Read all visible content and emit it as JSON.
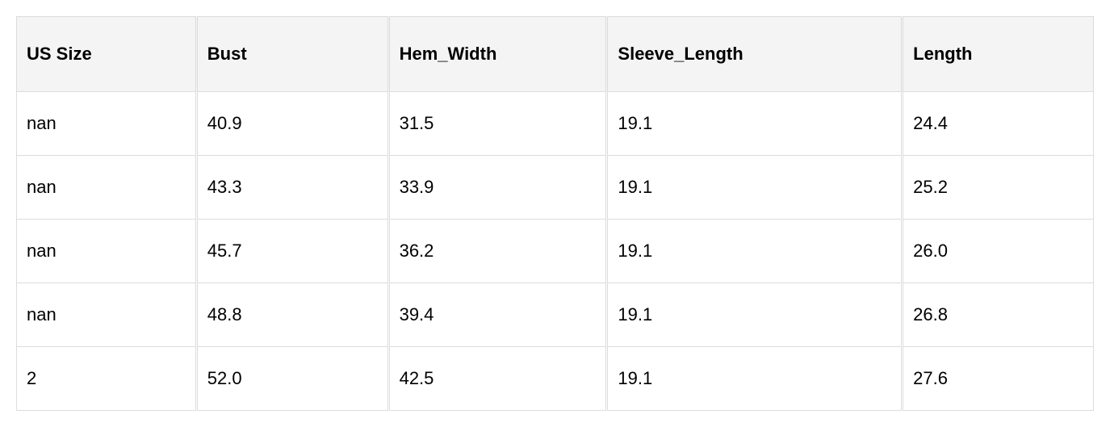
{
  "table": {
    "columns": [
      "US Size",
      "Bust",
      "Hem_Width",
      "Sleeve_Length",
      "Length"
    ],
    "rows": [
      [
        "nan",
        "40.9",
        "31.5",
        "19.1",
        "24.4"
      ],
      [
        "nan",
        "43.3",
        "33.9",
        "19.1",
        "25.2"
      ],
      [
        "nan",
        "45.7",
        "36.2",
        "19.1",
        "26.0"
      ],
      [
        "nan",
        "48.8",
        "39.4",
        "19.1",
        "26.8"
      ],
      [
        "2",
        "52.0",
        "42.5",
        "19.1",
        "27.6"
      ]
    ]
  }
}
